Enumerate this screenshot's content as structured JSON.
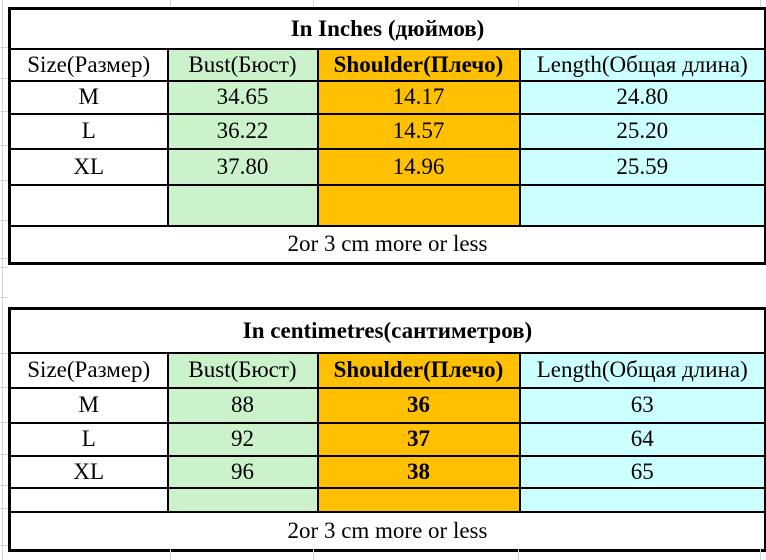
{
  "colors": {
    "bust_fill": "#ccf2cc",
    "shoulder_fill": "#ffc000",
    "length_fill": "#ccffff",
    "border_color": "#000000"
  },
  "tables": [
    {
      "title": "In Inches (дюймов)",
      "headers": [
        "Size(Размер)",
        "Bust(Бюст)",
        "Shoulder(Плечо)",
        "Length(Общая длина)"
      ],
      "rows": [
        {
          "size": "M",
          "bust": "34.65",
          "shoulder": "14.17",
          "length": "24.80"
        },
        {
          "size": "L",
          "bust": "36.22",
          "shoulder": "14.57",
          "length": "25.20"
        },
        {
          "size": "XL",
          "bust": "37.80",
          "shoulder": "14.96",
          "length": "25.59"
        }
      ],
      "note": "2or 3 cm more or less"
    },
    {
      "title": "In centimetres(сантиметров)",
      "headers": [
        "Size(Размер)",
        "Bust(Бюст)",
        "Shoulder(Плечо)",
        "Length(Общая длина)"
      ],
      "rows": [
        {
          "size": "M",
          "bust": "88",
          "shoulder": "36",
          "length": "63"
        },
        {
          "size": "L",
          "bust": "92",
          "shoulder": "37",
          "length": "64"
        },
        {
          "size": "XL",
          "bust": "96",
          "shoulder": "38",
          "length": "65"
        }
      ],
      "note": "2or 3 cm more or less"
    }
  ]
}
